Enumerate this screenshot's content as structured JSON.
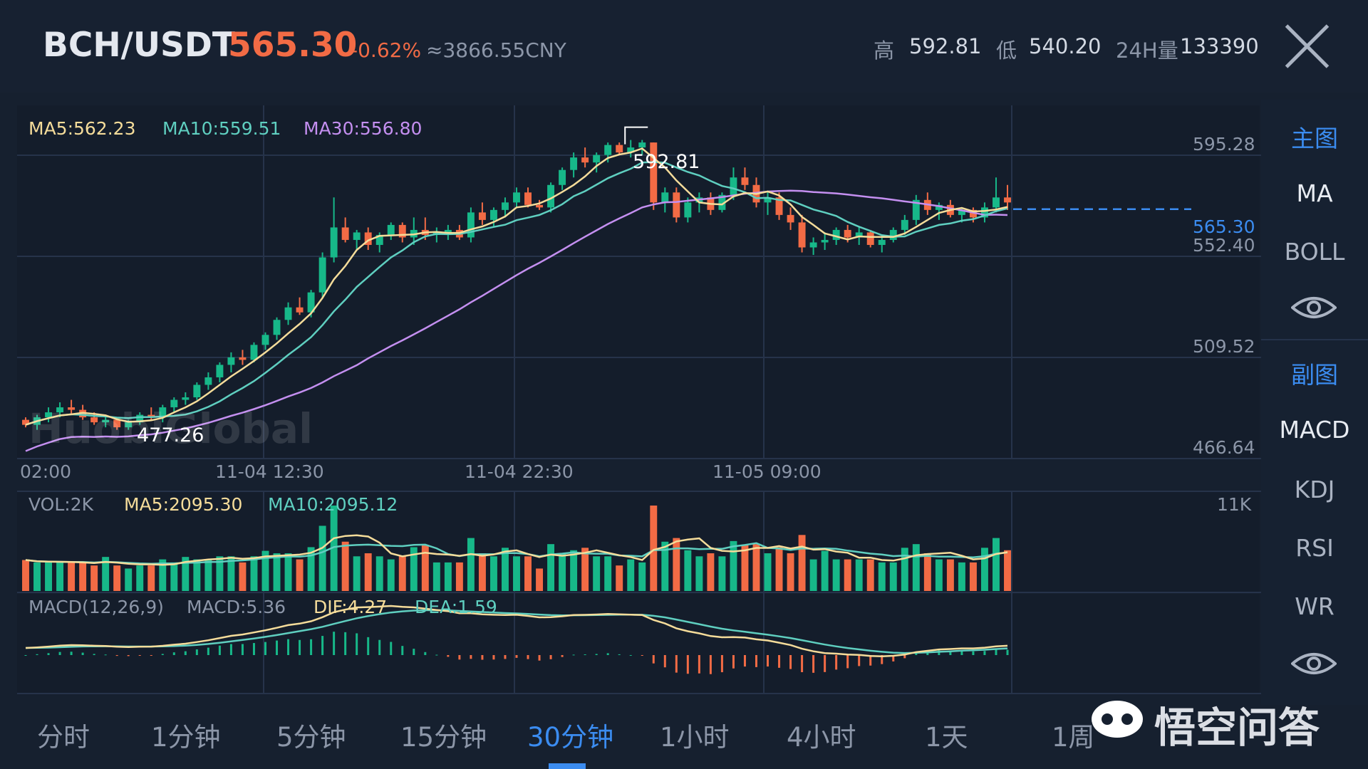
{
  "header": {
    "pair": "BCH/USDT",
    "price": "565.30",
    "change": "-0.62%",
    "cny": "≈3866.55CNY",
    "high_label": "高",
    "high_value": "592.81",
    "low_label": "低",
    "low_value": "540.20",
    "vol_label": "24H量",
    "vol_value": "133390"
  },
  "main_indicators": {
    "ma5": "MA5:562.23",
    "ma10": "MA10:559.51",
    "ma30": "MA30:556.80"
  },
  "price_axis": [
    "595.28",
    "552.40",
    "509.52",
    "466.64"
  ],
  "current_price_tag": "565.30",
  "high_marker": "592.81",
  "low_marker": "477.26",
  "time_axis": [
    "02:00",
    "11-04 12:30",
    "11-04 22:30",
    "11-05 09:00"
  ],
  "vol_panel": {
    "vol": "VOL:2K",
    "ma5": "MA5:2095.30",
    "ma10": "MA10:2095.12",
    "max": "11K"
  },
  "macd_panel": {
    "params": "MACD(12,26,9)",
    "macd": "MACD:5.36",
    "dif": "DIF:4.27",
    "dea": "DEA:1.59"
  },
  "sidebar": {
    "main_chart": "主图",
    "ma": "MA",
    "boll": "BOLL",
    "sub_chart": "副图",
    "macd": "MACD",
    "kdj": "KDJ",
    "rsi": "RSI",
    "wr": "WR"
  },
  "timeframes": [
    "分时",
    "1分钟",
    "5分钟",
    "15分钟",
    "30分钟",
    "1小时",
    "4小时",
    "1天",
    "1周"
  ],
  "active_timeframe": "30分钟",
  "watermark": "悟空问答",
  "ghost_logo": "HuobiGlobal",
  "colors": {
    "up": "#17b889",
    "down": "#f26b45",
    "ma5": "#f5dc9a",
    "ma10": "#5fcfc0",
    "ma30": "#c48ff0",
    "accent": "#3b8cf0"
  },
  "chart_data": {
    "type": "candlestick",
    "y_ticks": [
      595.28,
      552.4,
      509.52,
      466.64
    ],
    "x_ticks": [
      "02:00",
      "11-04 12:30",
      "11-04 22:30",
      "11-05 09:00"
    ],
    "candles_ohlc": [
      [
        481,
        482,
        478,
        479
      ],
      [
        479,
        483,
        477,
        482
      ],
      [
        482,
        486,
        480,
        484
      ],
      [
        484,
        488,
        482,
        486
      ],
      [
        486,
        489,
        483,
        485
      ],
      [
        485,
        487,
        481,
        482
      ],
      [
        482,
        484,
        479,
        480
      ],
      [
        480,
        483,
        478,
        481
      ],
      [
        481,
        482,
        477,
        478
      ],
      [
        478,
        481,
        477,
        480
      ],
      [
        480,
        484,
        479,
        483
      ],
      [
        483,
        486,
        481,
        482
      ],
      [
        482,
        487,
        480,
        486
      ],
      [
        486,
        490,
        484,
        489
      ],
      [
        489,
        492,
        487,
        490
      ],
      [
        490,
        496,
        489,
        495
      ],
      [
        495,
        500,
        493,
        498
      ],
      [
        498,
        504,
        496,
        503
      ],
      [
        503,
        508,
        500,
        506
      ],
      [
        506,
        509,
        503,
        505
      ],
      [
        505,
        512,
        504,
        511
      ],
      [
        511,
        516,
        509,
        515
      ],
      [
        515,
        522,
        513,
        521
      ],
      [
        521,
        528,
        519,
        526
      ],
      [
        526,
        530,
        523,
        524
      ],
      [
        524,
        533,
        522,
        532
      ],
      [
        532,
        548,
        530,
        546
      ],
      [
        546,
        570,
        544,
        558
      ],
      [
        558,
        562,
        552,
        553
      ],
      [
        553,
        557,
        549,
        556
      ],
      [
        556,
        558,
        549,
        551
      ],
      [
        551,
        556,
        548,
        555
      ],
      [
        555,
        560,
        553,
        559
      ],
      [
        559,
        560,
        552,
        554
      ],
      [
        554,
        562,
        551,
        557
      ],
      [
        557,
        562,
        553,
        555
      ],
      [
        555,
        558,
        552,
        556
      ],
      [
        556,
        559,
        553,
        557
      ],
      [
        557,
        559,
        553,
        554
      ],
      [
        554,
        566,
        552,
        564
      ],
      [
        564,
        568,
        559,
        561
      ],
      [
        561,
        566,
        558,
        565
      ],
      [
        565,
        570,
        562,
        568
      ],
      [
        568,
        574,
        566,
        572
      ],
      [
        572,
        574,
        566,
        567
      ],
      [
        567,
        569,
        565,
        566
      ],
      [
        566,
        576,
        564,
        575
      ],
      [
        575,
        582,
        573,
        581
      ],
      [
        581,
        588,
        578,
        586
      ],
      [
        586,
        590,
        582,
        584
      ],
      [
        584,
        588,
        580,
        587
      ],
      [
        587,
        592,
        584,
        591
      ],
      [
        591,
        592,
        587,
        588
      ],
      [
        588,
        593,
        586,
        590
      ],
      [
        590,
        593,
        587,
        592
      ],
      [
        592,
        592,
        565,
        568
      ],
      [
        568,
        574,
        564,
        572
      ],
      [
        572,
        574,
        560,
        562
      ],
      [
        562,
        570,
        560,
        568
      ],
      [
        568,
        572,
        564,
        570
      ],
      [
        570,
        572,
        563,
        565
      ],
      [
        565,
        572,
        564,
        571
      ],
      [
        571,
        582,
        569,
        578
      ],
      [
        578,
        582,
        573,
        575
      ],
      [
        575,
        578,
        566,
        568
      ],
      [
        568,
        572,
        563,
        570
      ],
      [
        570,
        572,
        561,
        563
      ],
      [
        563,
        566,
        557,
        560
      ],
      [
        560,
        563,
        548,
        550
      ],
      [
        550,
        554,
        547,
        552
      ],
      [
        552,
        556,
        549,
        553
      ],
      [
        553,
        558,
        551,
        557
      ],
      [
        557,
        559,
        552,
        554
      ],
      [
        554,
        558,
        551,
        556
      ],
      [
        556,
        557,
        550,
        551
      ],
      [
        551,
        554,
        548,
        553
      ],
      [
        553,
        558,
        552,
        557
      ],
      [
        557,
        563,
        555,
        561
      ],
      [
        561,
        571,
        559,
        569
      ],
      [
        569,
        572,
        563,
        565
      ],
      [
        565,
        568,
        561,
        567
      ],
      [
        567,
        569,
        562,
        563
      ],
      [
        563,
        566,
        560,
        565
      ],
      [
        565,
        566,
        560,
        562
      ],
      [
        562,
        568,
        560,
        566
      ],
      [
        566,
        578,
        564,
        570
      ],
      [
        570,
        575,
        565,
        568
      ]
    ],
    "volume_max": "11K"
  }
}
